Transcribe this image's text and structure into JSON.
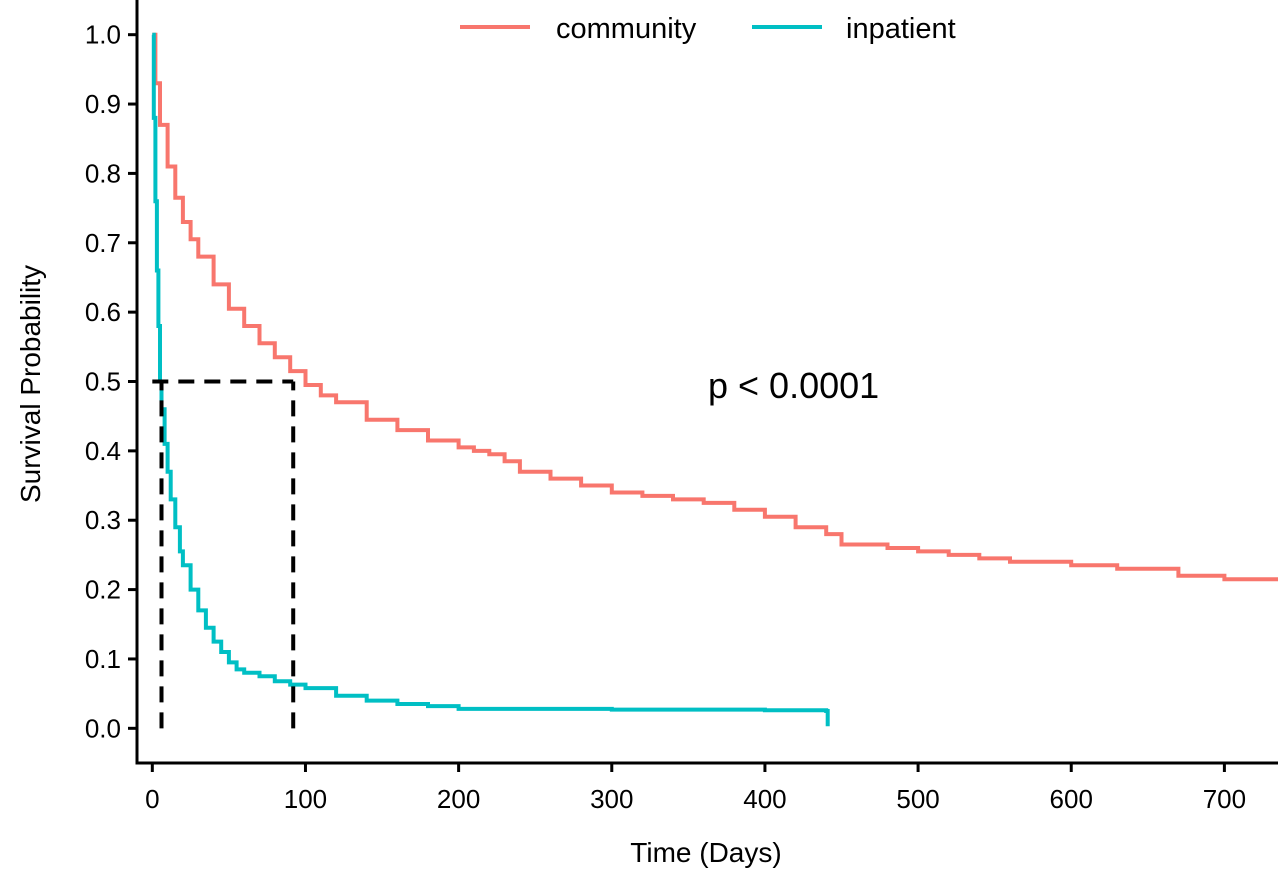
{
  "chart_data": {
    "type": "line",
    "title": "",
    "xlabel": "Time (Days)",
    "ylabel": "Survival Probability",
    "xlim": [
      -10,
      735
    ],
    "ylim": [
      -0.05,
      1.05
    ],
    "xticks": [
      0,
      100,
      200,
      300,
      400,
      500,
      600,
      700
    ],
    "xtick_labels": [
      "0",
      "100",
      "200",
      "300",
      "400",
      "500",
      "600",
      "700"
    ],
    "yticks": [
      0.0,
      0.1,
      0.2,
      0.3,
      0.4,
      0.5,
      0.6,
      0.7,
      0.8,
      0.9,
      1.0
    ],
    "ytick_labels": [
      "0.0",
      "0.1",
      "0.2",
      "0.3",
      "0.4",
      "0.5",
      "0.6",
      "0.7",
      "0.8",
      "0.9",
      "1.0"
    ],
    "grid": false,
    "legend_position": "top",
    "annotation": "p < 0.0001",
    "series": [
      {
        "name": "community",
        "color": "#F8766D",
        "x": [
          0,
          2,
          5,
          10,
          15,
          20,
          25,
          30,
          40,
          50,
          60,
          70,
          80,
          90,
          100,
          110,
          120,
          140,
          160,
          180,
          200,
          210,
          220,
          230,
          240,
          260,
          280,
          300,
          320,
          340,
          360,
          380,
          400,
          420,
          440,
          450,
          480,
          500,
          520,
          540,
          560,
          600,
          630,
          670,
          700,
          735
        ],
        "y": [
          1.0,
          0.93,
          0.87,
          0.81,
          0.765,
          0.73,
          0.705,
          0.68,
          0.64,
          0.605,
          0.58,
          0.555,
          0.535,
          0.515,
          0.495,
          0.48,
          0.47,
          0.445,
          0.43,
          0.415,
          0.405,
          0.4,
          0.395,
          0.385,
          0.37,
          0.36,
          0.35,
          0.34,
          0.335,
          0.33,
          0.325,
          0.315,
          0.305,
          0.29,
          0.28,
          0.265,
          0.26,
          0.255,
          0.25,
          0.245,
          0.24,
          0.235,
          0.23,
          0.22,
          0.215,
          0.215
        ]
      },
      {
        "name": "inpatient",
        "color": "#00BFC4",
        "x": [
          0,
          1,
          2,
          3,
          4,
          5,
          6,
          8,
          10,
          12,
          15,
          18,
          20,
          25,
          30,
          35,
          40,
          45,
          50,
          55,
          60,
          70,
          80,
          90,
          100,
          120,
          140,
          160,
          180,
          200,
          300,
          400,
          440,
          441
        ],
        "y": [
          1.0,
          0.88,
          0.76,
          0.66,
          0.58,
          0.5,
          0.46,
          0.41,
          0.37,
          0.33,
          0.29,
          0.255,
          0.235,
          0.2,
          0.17,
          0.145,
          0.125,
          0.11,
          0.095,
          0.085,
          0.08,
          0.075,
          0.068,
          0.063,
          0.058,
          0.047,
          0.04,
          0.035,
          0.032,
          0.028,
          0.027,
          0.026,
          0.025,
          0.003
        ]
      }
    ],
    "reference_lines": [
      {
        "x": [
          0,
          92
        ],
        "y": [
          0.5,
          0.5
        ]
      },
      {
        "x": [
          6,
          6
        ],
        "y": [
          0,
          0.5
        ]
      },
      {
        "x": [
          92,
          92
        ],
        "y": [
          0,
          0.5
        ]
      }
    ]
  }
}
